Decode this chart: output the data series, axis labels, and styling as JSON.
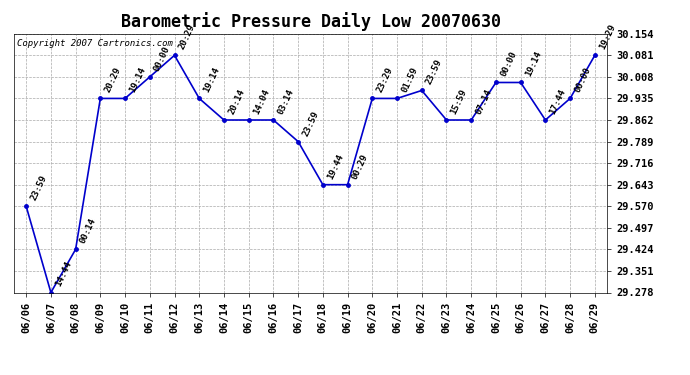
{
  "title": "Barometric Pressure Daily Low 20070630",
  "copyright": "Copyright 2007 Cartronics.com",
  "x_labels": [
    "06/06",
    "06/07",
    "06/08",
    "06/09",
    "06/10",
    "06/11",
    "06/12",
    "06/13",
    "06/14",
    "06/15",
    "06/16",
    "06/17",
    "06/18",
    "06/19",
    "06/20",
    "06/21",
    "06/22",
    "06/23",
    "06/24",
    "06/25",
    "06/26",
    "06/27",
    "06/28",
    "06/29"
  ],
  "y_values": [
    29.57,
    29.278,
    29.424,
    29.935,
    29.935,
    30.008,
    30.081,
    29.935,
    29.862,
    29.862,
    29.862,
    29.789,
    29.643,
    29.643,
    29.935,
    29.935,
    29.962,
    29.862,
    29.862,
    29.989,
    29.989,
    29.862,
    29.935,
    30.081
  ],
  "point_labels": [
    "23:59",
    "14:44",
    "00:14",
    "20:29",
    "19:14",
    "00:00",
    "20:29",
    "19:14",
    "20:14",
    "14:04",
    "03:14",
    "23:59",
    "19:44",
    "00:29",
    "23:29",
    "01:59",
    "23:59",
    "15:59",
    "07:14",
    "00:00",
    "19:14",
    "17:44",
    "00:00",
    "19:29"
  ],
  "line_color": "#0000CC",
  "marker_color": "#0000CC",
  "bg_color": "#FFFFFF",
  "grid_color": "#AAAAAA",
  "y_min": 29.278,
  "y_max": 30.154,
  "y_ticks": [
    29.278,
    29.351,
    29.424,
    29.497,
    29.57,
    29.643,
    29.716,
    29.789,
    29.862,
    29.935,
    30.008,
    30.081,
    30.154
  ],
  "title_fontsize": 12,
  "label_fontsize": 6.5,
  "tick_fontsize": 7.5,
  "copyright_fontsize": 6.5
}
